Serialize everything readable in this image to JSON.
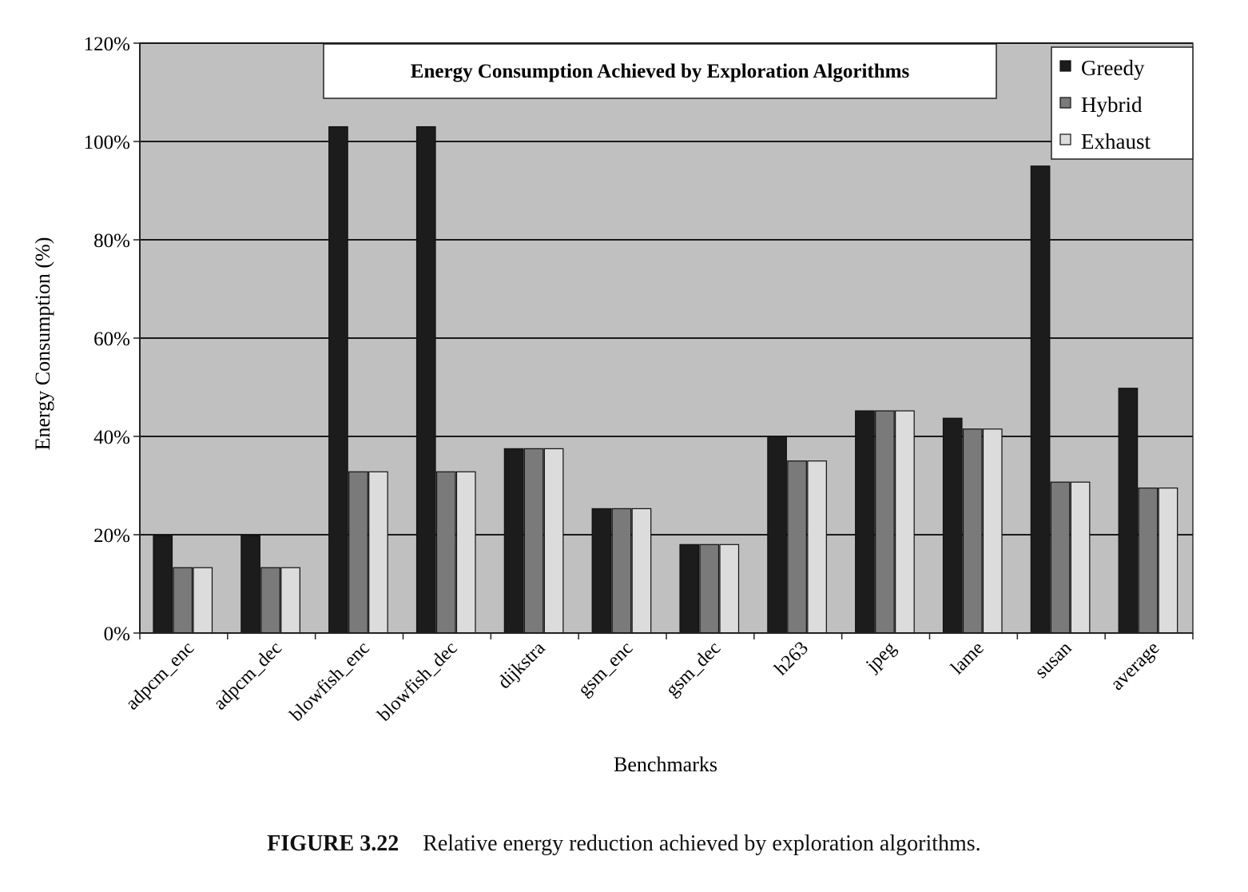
{
  "chart_data": {
    "type": "bar",
    "title": "Energy Consumption Achieved by Exploration Algorithms",
    "xlabel": "Benchmarks",
    "ylabel": "Energy Consumption (%)",
    "ylim": [
      0,
      120
    ],
    "y_ticks": [
      "0%",
      "20%",
      "40%",
      "60%",
      "80%",
      "100%",
      "120%"
    ],
    "grid": true,
    "legend_position": "top-right",
    "categories": [
      "adpcm_enc",
      "adpcm_dec",
      "blowfish_enc",
      "blowfish_dec",
      "dijkstra",
      "gsm_enc",
      "gsm_dec",
      "h263",
      "jpeg",
      "lame",
      "susan",
      "average"
    ],
    "series": [
      {
        "name": "Greedy",
        "color": "#1c1c1c",
        "values": [
          19.8,
          19.8,
          103,
          103,
          37.5,
          25.3,
          18,
          40,
          45.2,
          43.7,
          95,
          49.8
        ]
      },
      {
        "name": "Hybrid",
        "color": "#7a7a7a",
        "values": [
          13.3,
          13.3,
          32.8,
          32.8,
          37.5,
          25.3,
          18,
          35,
          45.2,
          41.5,
          30.7,
          29.5
        ]
      },
      {
        "name": "Exhaust",
        "color": "#dcdcdc",
        "values": [
          13.3,
          13.3,
          32.8,
          32.8,
          37.5,
          25.3,
          18,
          35,
          45.2,
          41.5,
          30.7,
          29.5
        ]
      }
    ],
    "plot_background": "#c0c0c0"
  },
  "caption": {
    "figure_number": "FIGURE 3.22",
    "text": "Relative energy reduction achieved by exploration algorithms."
  }
}
